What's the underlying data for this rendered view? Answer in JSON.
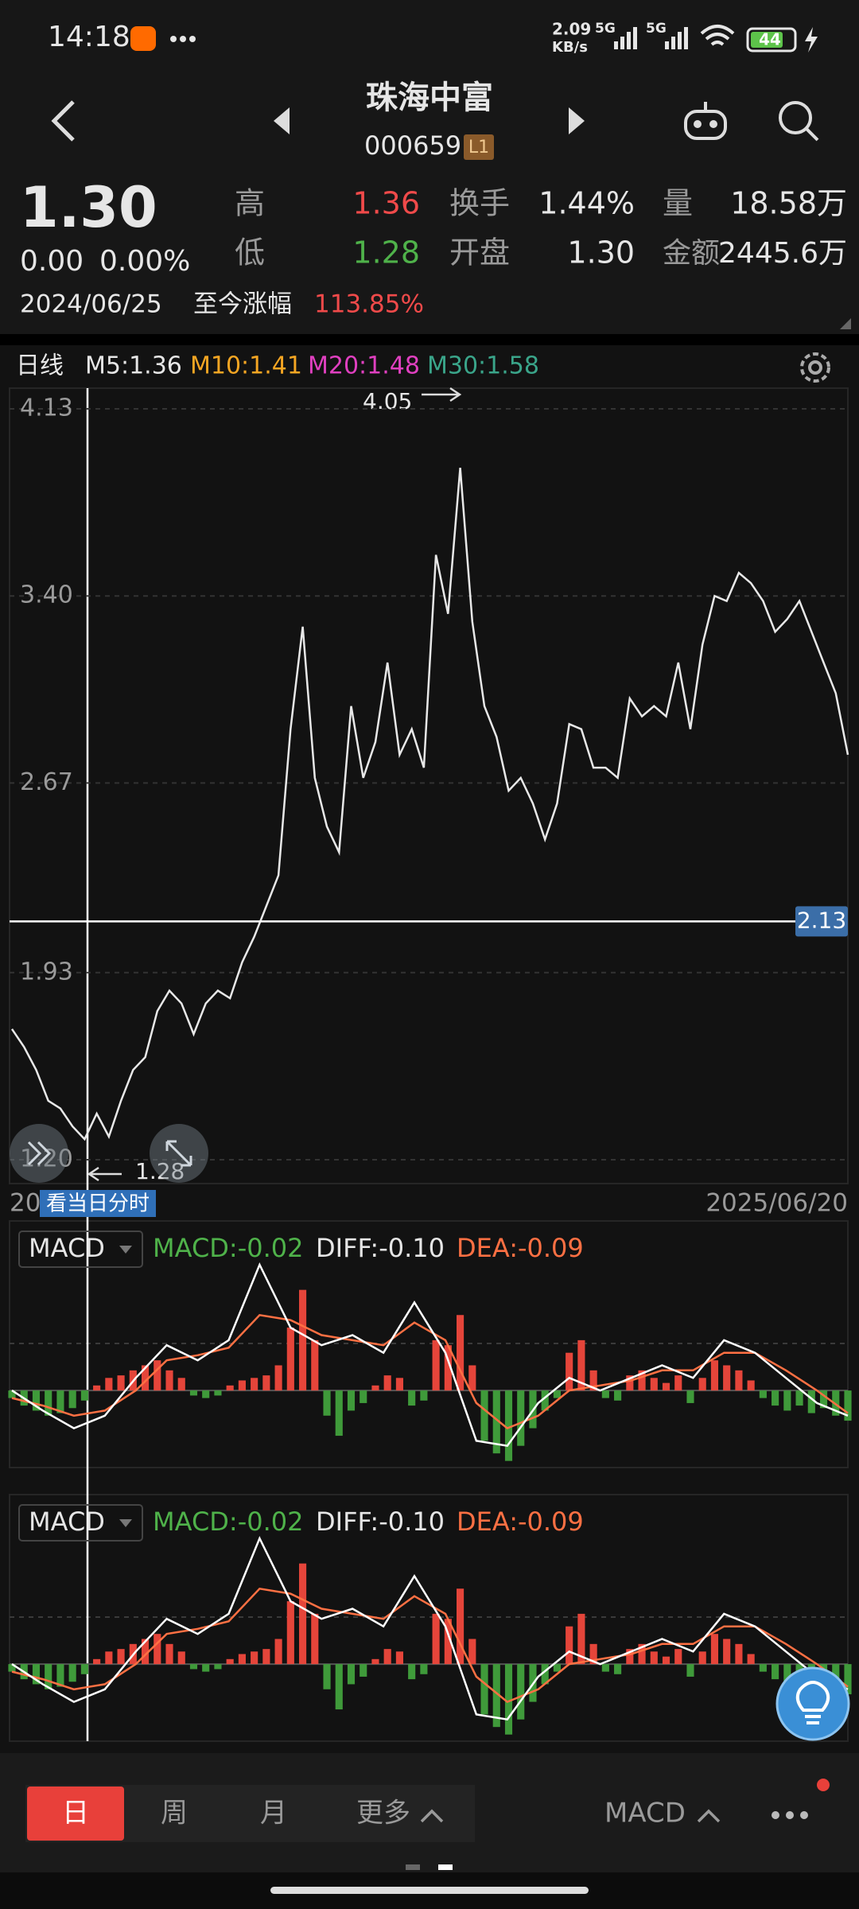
{
  "status_bar": {
    "time": "14:18",
    "net_speed": "2.09",
    "net_unit": "KB/s",
    "sim1": "5G",
    "sim2": "5G",
    "battery": "44"
  },
  "header": {
    "title": "珠海中富",
    "code": "000659",
    "badge": "L1"
  },
  "quote": {
    "price": "1.30",
    "change": "0.00",
    "change_pct": "0.00%",
    "high_label": "高",
    "high": "1.36",
    "low_label": "低",
    "low": "1.28",
    "turnover_label": "换手",
    "turnover": "1.44%",
    "open_label": "开盘",
    "open": "1.30",
    "volume_label": "量",
    "volume": "18.58万",
    "amount_label": "金额",
    "amount": "2445.6万",
    "date": "2024/06/25",
    "gain_label": "至今涨幅",
    "gain": "113.85%"
  },
  "indicators": {
    "period": "日线",
    "m5": "M5:1.36",
    "m10": "M10:1.41",
    "m20": "M20:1.48",
    "m30": "M30:1.58"
  },
  "price_chart": {
    "type": "line",
    "color": "#e8e8e8",
    "values": [
      1.71,
      1.64,
      1.55,
      1.43,
      1.4,
      1.33,
      1.28,
      1.38,
      1.29,
      1.43,
      1.55,
      1.6,
      1.78,
      1.86,
      1.81,
      1.69,
      1.81,
      1.86,
      1.83,
      1.97,
      2.07,
      2.19,
      2.31,
      2.88,
      3.28,
      2.69,
      2.5,
      2.4,
      2.97,
      2.69,
      2.83,
      3.14,
      2.78,
      2.88,
      2.73,
      3.56,
      3.33,
      3.9,
      3.3,
      2.97,
      2.85,
      2.64,
      2.69,
      2.59,
      2.45,
      2.59,
      2.9,
      2.88,
      2.73,
      2.73,
      2.69,
      3.0,
      2.93,
      2.97,
      2.93,
      3.14,
      2.88,
      3.21,
      3.4,
      3.38,
      3.49,
      3.45,
      3.38,
      3.26,
      3.31,
      3.38,
      3.26,
      3.14,
      3.02,
      2.78
    ],
    "ylim": [
      1.2,
      4.13
    ],
    "yticks": [
      4.13,
      {
        "value": 3.4,
        "label": "3.40"
      },
      2.67,
      1.93,
      {
        "value": 1.2,
        "label": "1.20"
      }
    ],
    "grid": true,
    "crosshair": 2.13,
    "high_note": "4.05",
    "low_note": "1.28",
    "start_date": "20",
    "end_date": "2025/06/20",
    "intraday_button": "看当日分时"
  },
  "macd_panels": [
    {
      "selector": "MACD",
      "macd": "MACD:-0.02",
      "diff": "DIFF:-0.10",
      "dea": "DEA:-0.09"
    },
    {
      "selector": "MACD",
      "macd": "MACD:-0.02",
      "diff": "DIFF:-0.10",
      "dea": "DEA:-0.09"
    }
  ],
  "macd_chart": {
    "type": "bar",
    "ylim": [
      -0.3,
      0.5
    ],
    "up_color": "#e5453a",
    "down_color": "#3f9a3a",
    "diff_color": "#ffffff",
    "dea_color": "#ff7043",
    "histogram": [
      -0.03,
      -0.06,
      -0.08,
      -0.1,
      -0.09,
      -0.07,
      -0.04,
      0.02,
      0.05,
      0.06,
      0.08,
      0.1,
      0.12,
      0.08,
      0.05,
      -0.02,
      -0.03,
      -0.02,
      0.02,
      0.04,
      0.05,
      0.06,
      0.1,
      0.25,
      0.4,
      0.2,
      -0.1,
      -0.18,
      -0.08,
      -0.05,
      0.02,
      0.06,
      0.05,
      -0.06,
      -0.04,
      0.2,
      0.18,
      0.3,
      0.1,
      -0.2,
      -0.25,
      -0.28,
      -0.22,
      -0.15,
      -0.08,
      -0.03,
      0.15,
      0.2,
      0.08,
      -0.03,
      -0.04,
      0.06,
      0.08,
      0.05,
      0.03,
      0.06,
      -0.05,
      0.05,
      0.12,
      0.1,
      0.08,
      0.04,
      -0.03,
      -0.06,
      -0.08,
      -0.06,
      -0.09,
      -0.07,
      -0.1,
      -0.12
    ],
    "diff": [
      0.0,
      -0.08,
      -0.15,
      -0.1,
      0.05,
      0.18,
      0.12,
      0.2,
      0.5,
      0.25,
      0.18,
      0.22,
      0.15,
      0.35,
      0.15,
      -0.2,
      -0.22,
      -0.05,
      0.05,
      0.0,
      0.05,
      0.1,
      0.05,
      0.2,
      0.15,
      0.05,
      -0.05,
      -0.1
    ],
    "dea": [
      -0.03,
      -0.06,
      -0.1,
      -0.08,
      0.0,
      0.12,
      0.14,
      0.17,
      0.3,
      0.28,
      0.22,
      0.2,
      0.18,
      0.27,
      0.2,
      -0.05,
      -0.15,
      -0.1,
      0.0,
      0.02,
      0.04,
      0.08,
      0.08,
      0.15,
      0.15,
      0.08,
      0.0,
      -0.09
    ]
  },
  "bottom_bar": {
    "tabs": [
      "日",
      "周",
      "月",
      "更多"
    ],
    "indicator": "MACD"
  }
}
